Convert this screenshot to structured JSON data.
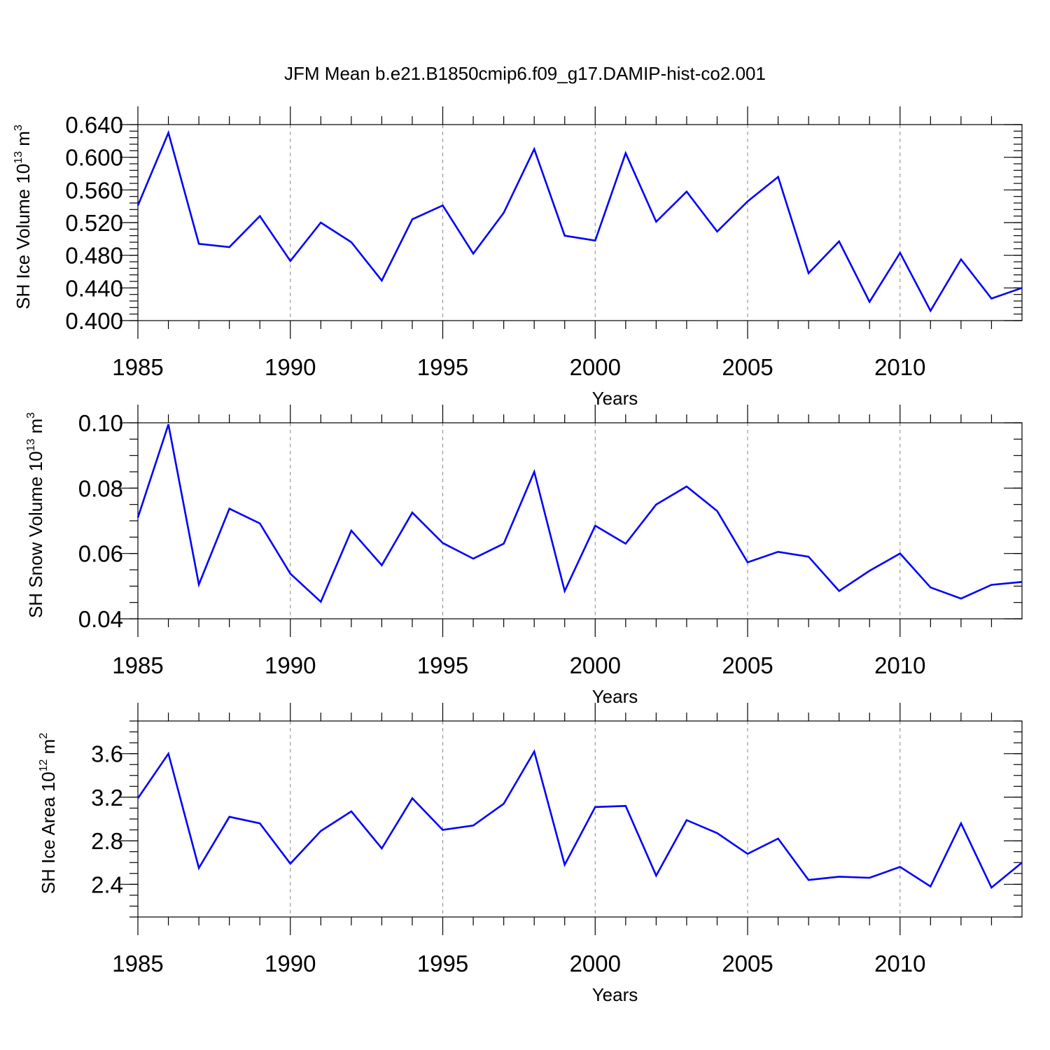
{
  "title": "JFM Mean b.e21.B1850cmip6.f09_g17.DAMIP-hist-co2.001",
  "colors": {
    "series": "#0000ff",
    "axes": "#000000",
    "grid": "#888888"
  },
  "chart_data": [
    {
      "type": "line",
      "name": "ice-volume",
      "ylabel": {
        "main": "SH Ice Volume 10",
        "sup1": "13",
        "mid": " m",
        "sup2": "3"
      },
      "xlabel": "Years",
      "xlim": [
        1985,
        2014
      ],
      "ylim": [
        0.4,
        0.64
      ],
      "ytick_values": [
        0.4,
        0.44,
        0.48,
        0.52,
        0.56,
        0.6,
        0.64
      ],
      "ytick_labels": [
        "0.400",
        "0.440",
        "0.480",
        "0.520",
        "0.560",
        "0.600",
        "0.640"
      ],
      "yminor_step": 0.008,
      "xtick_values": [
        1985,
        1990,
        1995,
        2000,
        2005,
        2010
      ],
      "xtick_labels": [
        "1985",
        "1990",
        "1995",
        "2000",
        "2005",
        "2010"
      ],
      "grid_x": [
        1990,
        1995,
        2000,
        2005,
        2010
      ],
      "x": [
        1985,
        1986,
        1987,
        1988,
        1989,
        1990,
        1991,
        1992,
        1993,
        1994,
        1995,
        1996,
        1997,
        1998,
        1999,
        2000,
        2001,
        2002,
        2003,
        2004,
        2005,
        2006,
        2007,
        2008,
        2009,
        2010,
        2011,
        2012,
        2013,
        2014
      ],
      "values": [
        0.541,
        0.63,
        0.494,
        0.49,
        0.528,
        0.473,
        0.52,
        0.496,
        0.449,
        0.524,
        0.541,
        0.482,
        0.532,
        0.61,
        0.504,
        0.498,
        0.605,
        0.521,
        0.558,
        0.509,
        0.546,
        0.576,
        0.458,
        0.497,
        0.423,
        0.483,
        0.412,
        0.475,
        0.427,
        0.44
      ]
    },
    {
      "type": "line",
      "name": "snow-volume",
      "ylabel": {
        "main": "SH Snow Volume 10",
        "sup1": "13",
        "mid": " m",
        "sup2": "3"
      },
      "xlabel": "Years",
      "xlim": [
        1985,
        2014
      ],
      "ylim": [
        0.04,
        0.1
      ],
      "ytick_values": [
        0.04,
        0.06,
        0.08,
        0.1
      ],
      "ytick_labels": [
        "0.04",
        "0.06",
        "0.08",
        "0.10"
      ],
      "yminor_step": 0.005,
      "xtick_values": [
        1985,
        1990,
        1995,
        2000,
        2005,
        2010
      ],
      "xtick_labels": [
        "1985",
        "1990",
        "1995",
        "2000",
        "2005",
        "2010"
      ],
      "grid_x": [
        1990,
        1995,
        2000,
        2005,
        2010
      ],
      "x": [
        1985,
        1986,
        1987,
        1988,
        1989,
        1990,
        1991,
        1992,
        1993,
        1994,
        1995,
        1996,
        1997,
        1998,
        1999,
        2000,
        2001,
        2002,
        2003,
        2004,
        2005,
        2006,
        2007,
        2008,
        2009,
        2010,
        2011,
        2012,
        2013,
        2014
      ],
      "values": [
        0.071,
        0.0995,
        0.0505,
        0.0737,
        0.0692,
        0.0538,
        0.0452,
        0.067,
        0.0564,
        0.0725,
        0.0632,
        0.0584,
        0.063,
        0.085,
        0.0485,
        0.0685,
        0.063,
        0.075,
        0.0805,
        0.073,
        0.0573,
        0.0605,
        0.059,
        0.0485,
        0.0547,
        0.06,
        0.0496,
        0.0462,
        0.0504,
        0.0513
      ]
    },
    {
      "type": "line",
      "name": "ice-area",
      "ylabel": {
        "main": "SH Ice Area 10",
        "sup1": "12",
        "mid": " m",
        "sup2": "2"
      },
      "xlabel": "Years",
      "xlim": [
        1985,
        2014
      ],
      "ylim": [
        2.1,
        3.9
      ],
      "ytick_values": [
        2.4,
        2.8,
        3.2,
        3.6
      ],
      "ytick_labels": [
        "2.4",
        "2.8",
        "3.2",
        "3.6"
      ],
      "yminor_step": 0.1,
      "xtick_values": [
        1985,
        1990,
        1995,
        2000,
        2005,
        2010
      ],
      "xtick_labels": [
        "1985",
        "1990",
        "1995",
        "2000",
        "2005",
        "2010"
      ],
      "grid_x": [
        1990,
        1995,
        2000,
        2005,
        2010
      ],
      "x": [
        1985,
        1986,
        1987,
        1988,
        1989,
        1990,
        1991,
        1992,
        1993,
        1994,
        1995,
        1996,
        1997,
        1998,
        1999,
        2000,
        2001,
        2002,
        2003,
        2004,
        2005,
        2006,
        2007,
        2008,
        2009,
        2010,
        2011,
        2012,
        2013,
        2014
      ],
      "values": [
        3.19,
        3.6,
        2.55,
        3.02,
        2.96,
        2.59,
        2.89,
        3.07,
        2.73,
        3.19,
        2.9,
        2.94,
        3.14,
        3.62,
        2.58,
        3.11,
        3.12,
        2.48,
        2.99,
        2.87,
        2.68,
        2.82,
        2.44,
        2.47,
        2.46,
        2.56,
        2.38,
        2.96,
        2.37,
        2.6
      ]
    }
  ]
}
